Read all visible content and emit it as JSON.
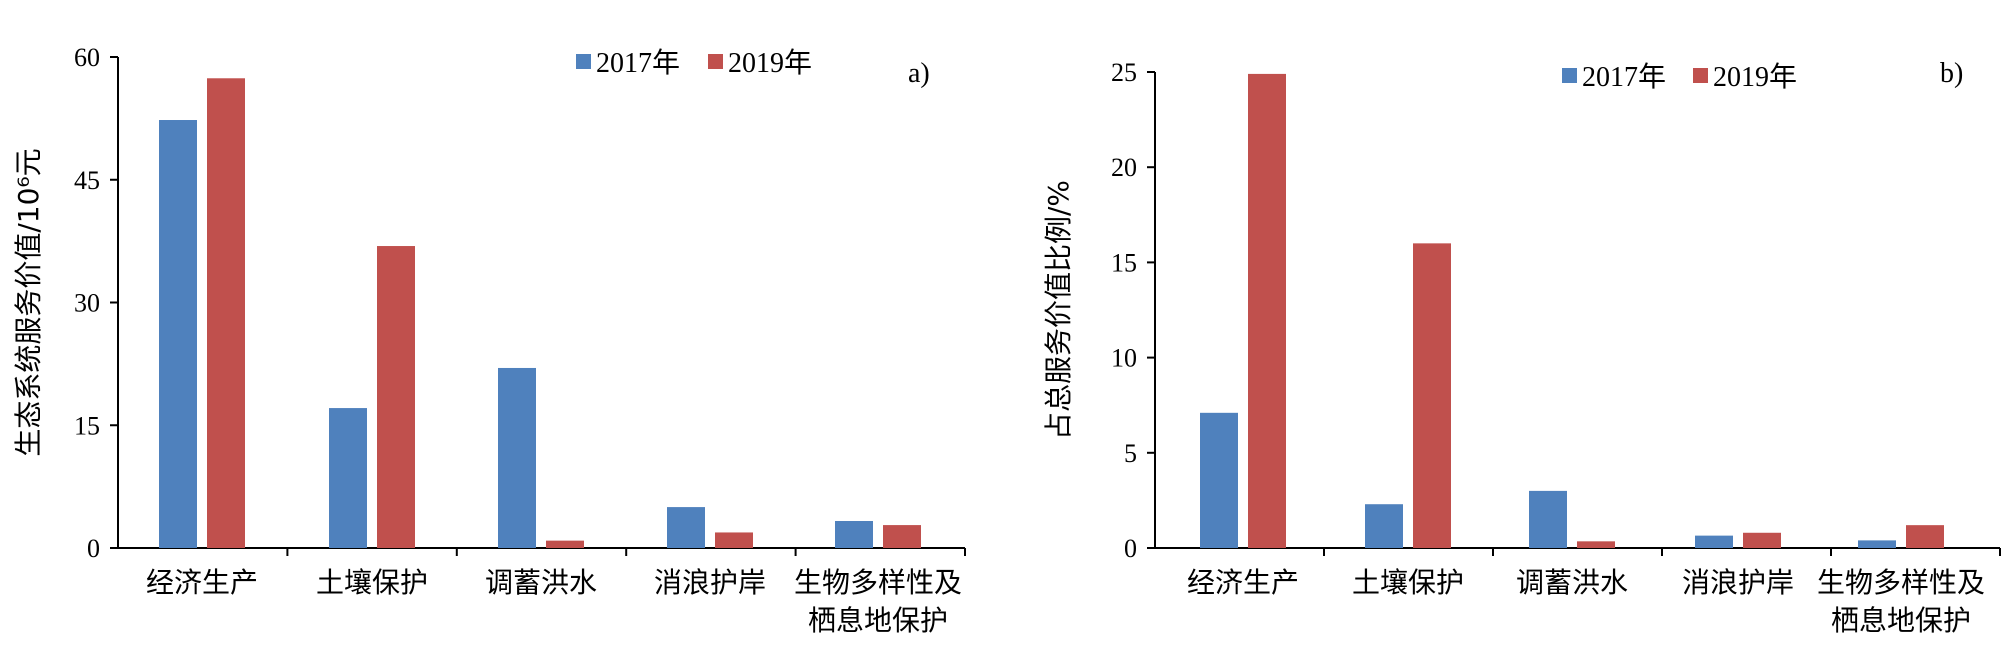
{
  "chart_data": [
    {
      "type": "bar",
      "panel_label": "a)",
      "ylabel": "生态系统服务价值/10⁶元",
      "ylim": [
        0,
        60
      ],
      "yticks": [
        0,
        15,
        30,
        45,
        60
      ],
      "categories": [
        [
          "经济生产"
        ],
        [
          "土壤保护"
        ],
        [
          "调蓄洪水"
        ],
        [
          "消浪护岸"
        ],
        [
          "生物多样性及",
          "栖息地保护"
        ]
      ],
      "series": [
        {
          "name": "2017年",
          "color": "#4f81bd",
          "values": [
            52.3,
            17.1,
            22.0,
            5.0,
            3.3
          ]
        },
        {
          "name": "2019年",
          "color": "#c0504d",
          "values": [
            57.4,
            36.9,
            0.9,
            1.9,
            2.8
          ]
        }
      ],
      "legend_position": "top-center"
    },
    {
      "type": "bar",
      "panel_label": "b)",
      "ylabel": "占总服务价值比例/%",
      "ylim": [
        0,
        25
      ],
      "yticks": [
        0,
        5,
        10,
        15,
        20,
        25
      ],
      "categories": [
        [
          "经济生产"
        ],
        [
          "土壤保护"
        ],
        [
          "调蓄洪水"
        ],
        [
          "消浪护岸"
        ],
        [
          "生物多样性及",
          "栖息地保护"
        ]
      ],
      "series": [
        {
          "name": "2017年",
          "color": "#4f81bd",
          "values": [
            7.1,
            2.3,
            3.0,
            0.65,
            0.4
          ]
        },
        {
          "name": "2019年",
          "color": "#c0504d",
          "values": [
            24.9,
            16.0,
            0.35,
            0.8,
            1.2
          ]
        }
      ],
      "legend_position": "top-center"
    }
  ]
}
